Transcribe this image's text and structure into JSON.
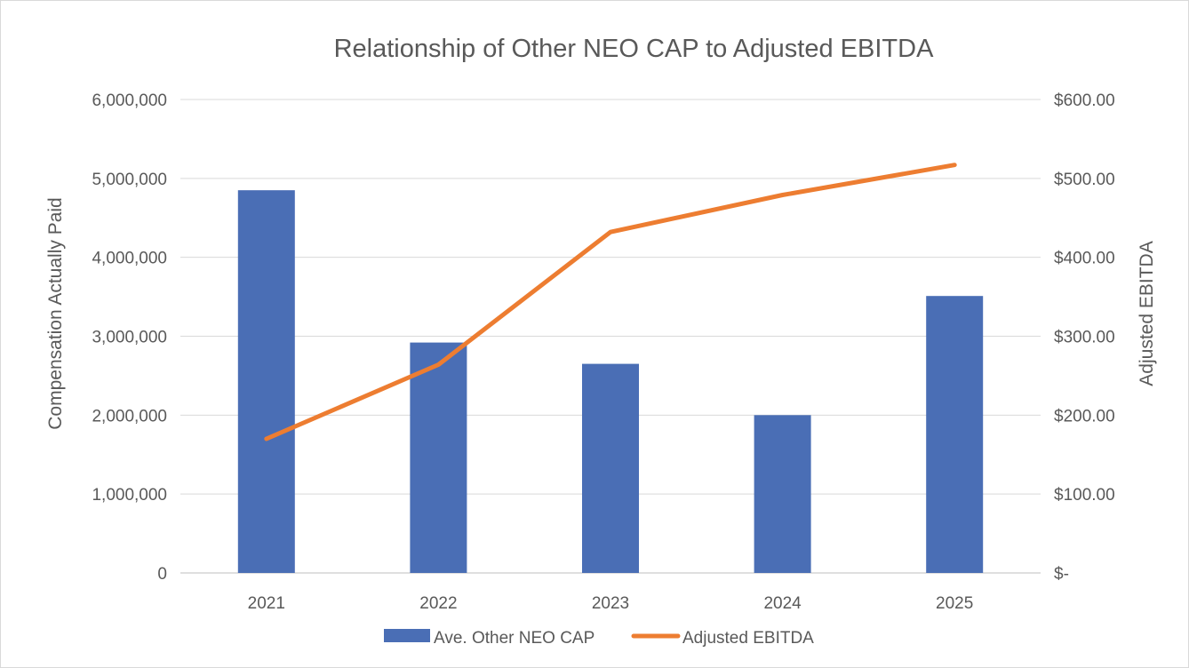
{
  "chart_data": {
    "type": "bar",
    "title": "Relationship of Other NEO CAP to Adjusted EBITDA",
    "categories": [
      "2021",
      "2022",
      "2023",
      "2024",
      "2025"
    ],
    "series": [
      {
        "name": "Ave. Other NEO CAP",
        "type": "bar",
        "axis": "left",
        "color": "#4a6eb5",
        "values": [
          4850000,
          2920000,
          2650000,
          2000000,
          3510000
        ]
      },
      {
        "name": "Adjusted EBITDA",
        "type": "line",
        "axis": "right",
        "color": "#ed7d31",
        "values": [
          170,
          264,
          432,
          479,
          517
        ]
      }
    ],
    "y_left": {
      "label": "Compensation Actually Paid",
      "range": [
        0,
        6000000
      ],
      "ticks": [
        "0",
        "1,000,000",
        "2,000,000",
        "3,000,000",
        "4,000,000",
        "5,000,000",
        "6,000,000"
      ]
    },
    "y_right": {
      "label": "Adjusted EBITDA",
      "range": [
        0,
        600
      ],
      "ticks": [
        "$-",
        "$100.00",
        "$200.00",
        "$300.00",
        "$400.00",
        "$500.00",
        "$600.00"
      ]
    },
    "grid": true,
    "legend_position": "bottom"
  }
}
